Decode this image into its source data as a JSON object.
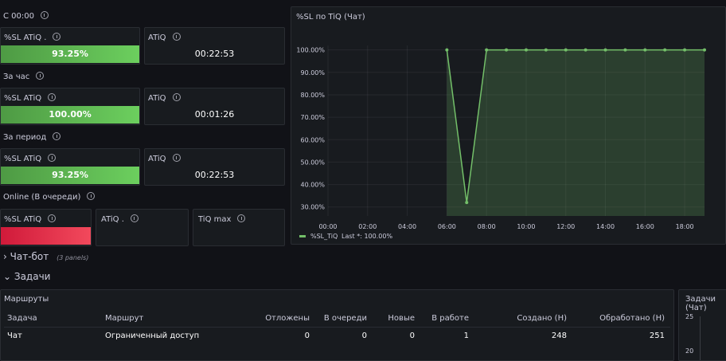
{
  "sections": [
    {
      "title": "С 00:00",
      "panels": [
        {
          "title": "%SL ATiQ .",
          "value": "93.25%"
        },
        {
          "title": "ATiQ",
          "value": "00:22:53"
        }
      ]
    },
    {
      "title": "За час",
      "panels": [
        {
          "title": "%SL ATiQ",
          "value": "100.00%"
        },
        {
          "title": "ATiQ",
          "value": "00:01:26"
        }
      ]
    },
    {
      "title": "За период",
      "panels": [
        {
          "title": "%SL ATiQ",
          "value": "93.25%"
        },
        {
          "title": "ATiQ",
          "value": "00:22:53"
        }
      ]
    },
    {
      "title": "Online (В очереди)",
      "panels": [
        {
          "title": "%SL ATiQ"
        },
        {
          "title": "ATiQ ."
        },
        {
          "title": "TiQ max"
        }
      ]
    }
  ],
  "chart_data": {
    "type": "line",
    "title": "%SL по TiQ (Чат)",
    "x": [
      6,
      7,
      8,
      9,
      10,
      11,
      12,
      13,
      14,
      15,
      16,
      17,
      18,
      19
    ],
    "series": [
      {
        "name": "%SL_TiQ",
        "color": "#73bf69",
        "values": [
          100,
          32,
          100,
          100,
          100,
          100,
          100,
          100,
          100,
          100,
          100,
          100,
          100,
          100
        ]
      }
    ],
    "legend_stat": "Last *: 100.00%",
    "xlim": [
      0,
      19
    ],
    "xticks": [
      {
        "value": 0,
        "label": "00:00"
      },
      {
        "value": 2,
        "label": "02:00"
      },
      {
        "value": 4,
        "label": "04:00"
      },
      {
        "value": 6,
        "label": "06:00"
      },
      {
        "value": 8,
        "label": "08:00"
      },
      {
        "value": 10,
        "label": "10:00"
      },
      {
        "value": 12,
        "label": "12:00"
      },
      {
        "value": 14,
        "label": "14:00"
      },
      {
        "value": 16,
        "label": "16:00"
      },
      {
        "value": 18,
        "label": "18:00"
      }
    ],
    "ylim": [
      26,
      102
    ],
    "yticks": [
      {
        "value": 30,
        "label": "30.00%"
      },
      {
        "value": 40,
        "label": "40.00%"
      },
      {
        "value": 50,
        "label": "50.00%"
      },
      {
        "value": 60,
        "label": "60.00%"
      },
      {
        "value": 70,
        "label": "70.00%"
      },
      {
        "value": 80,
        "label": "80.00%"
      },
      {
        "value": 90,
        "label": "90.00%"
      },
      {
        "value": 100,
        "label": "100.00%"
      }
    ],
    "grid": true
  },
  "rows": [
    {
      "title": "Чат-бот",
      "note": "(3 panels)"
    },
    {
      "title": "Задачи"
    }
  ],
  "table": {
    "title": "Маршруты",
    "columns": [
      "Задача",
      "Маршрут",
      "Отложены",
      "В очереди",
      "Новые",
      "В работе",
      "Создано (Н)",
      "Обработано (Н)"
    ],
    "rows": [
      [
        "Чат",
        "Ограниченный доступ",
        "0",
        "0",
        "0",
        "1",
        "248",
        "251"
      ]
    ]
  },
  "side_panel": {
    "title": "Задачи (Чат)",
    "ticks": [
      "25",
      "20"
    ]
  }
}
